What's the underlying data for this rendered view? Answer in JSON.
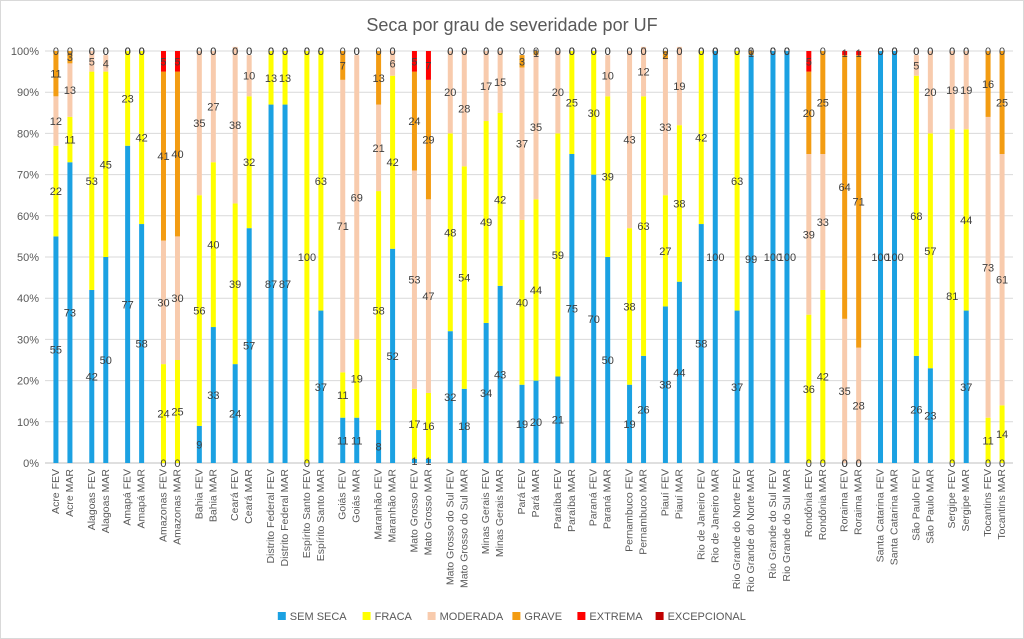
{
  "chart_data": {
    "type": "bar",
    "stacked": true,
    "percent_stacked": true,
    "title": "Seca por grau de severidade por UF",
    "xlabel": "",
    "ylabel": "",
    "ylim": [
      0,
      100
    ],
    "y_ticks": [
      "0%",
      "10%",
      "20%",
      "30%",
      "40%",
      "50%",
      "60%",
      "70%",
      "80%",
      "90%",
      "100%"
    ],
    "grid": true,
    "legend_position": "bottom",
    "categories": [
      "Acre FEV",
      "Acre MAR",
      "Alagoas FEV",
      "Alagoas MAR",
      "Amapá FEV",
      "Amapá MAR",
      "Amazonas FEV",
      "Amazonas MAR",
      "Bahia FEV",
      "Bahia MAR",
      "Ceará FEV",
      "Ceará MAR",
      "Distrito Federal FEV",
      "Distrito Federal MAR",
      "Espírito Santo FEV",
      "Espírito Santo MAR",
      "Goiás FEV",
      "Goiás MAR",
      "Maranhão FEV",
      "Maranhão MAR",
      "Mato Grosso FEV",
      "Mato Grosso MAR",
      "Mato Grosso do Sul FEV",
      "Mato Grosso do Sul MAR",
      "Minas Gerais FEV",
      "Minas Gerais MAR",
      "Pará FEV",
      "Pará MAR",
      "Paraíba FEV",
      "Paraíba MAR",
      "Paraná FEV",
      "Paraná MAR",
      "Pernambuco FEV",
      "Pernambuco MAR",
      "Piauí FEV",
      "Piauí MAR",
      "Rio de Janeiro FEV",
      "Rio de Janeiro MAR",
      "Rio Grande do Norte FEV",
      "Rio Grande do Norte MAR",
      "Rio Grande do Sul FEV",
      "Rio Grande do Sul MAR",
      "Rondônia FEV",
      "Rondônia MAR",
      "Roraima FEV",
      "Roraima MAR",
      "Santa Catarina FEV",
      "Santa Catarina MAR",
      "São Paulo FEV",
      "São Paulo MAR",
      "Sergipe FEV",
      "Sergipe MAR",
      "Tocantins FEV",
      "Tocantins MAR"
    ],
    "series": [
      {
        "name": "SEM SECA",
        "color": "#1ba1e2",
        "values": [
          55,
          73,
          42,
          50,
          77,
          58,
          0,
          0,
          9,
          33,
          24,
          57,
          87,
          87,
          0,
          37,
          11,
          11,
          8,
          52,
          1,
          1,
          32,
          18,
          34,
          43,
          19,
          20,
          21,
          75,
          70,
          50,
          19,
          26,
          38,
          44,
          58,
          100,
          37,
          99,
          100,
          100,
          0,
          0,
          0,
          0,
          100,
          100,
          26,
          23,
          0,
          37,
          0,
          0
        ]
      },
      {
        "name": "FRACA",
        "color": "#ffff00",
        "values": [
          22,
          11,
          53,
          45,
          23,
          42,
          24,
          25,
          56,
          40,
          39,
          32,
          13,
          13,
          100,
          63,
          11,
          19,
          58,
          42,
          17,
          16,
          48,
          54,
          49,
          42,
          40,
          44,
          59,
          25,
          30,
          39,
          38,
          63,
          27,
          38,
          42,
          0,
          63,
          0,
          0,
          0,
          36,
          42,
          0,
          0,
          0,
          0,
          68,
          57,
          81,
          44,
          11,
          14
        ]
      },
      {
        "name": "MODERADA",
        "color": "#f8cbad",
        "values": [
          12,
          13,
          5,
          4,
          0,
          0,
          30,
          30,
          35,
          27,
          38,
          10,
          0,
          0,
          0,
          0,
          71,
          69,
          21,
          6,
          53,
          47,
          20,
          28,
          17,
          15,
          37,
          35,
          20,
          0,
          0,
          10,
          43,
          12,
          33,
          19,
          0,
          0,
          0,
          0,
          0,
          0,
          39,
          33,
          35,
          28,
          0,
          0,
          5,
          20,
          19,
          19,
          73,
          61
        ]
      },
      {
        "name": "GRAVE",
        "color": "#f39c12",
        "values": [
          11,
          3,
          0,
          0,
          0,
          0,
          41,
          40,
          0,
          0,
          0,
          0,
          0,
          0,
          0,
          0,
          7,
          0,
          13,
          0,
          24,
          29,
          0,
          0,
          0,
          0,
          3,
          1,
          0,
          0,
          0,
          0,
          0,
          0,
          2,
          0,
          0,
          0,
          0,
          1,
          0,
          0,
          20,
          25,
          64,
          71,
          0,
          0,
          0,
          0,
          0,
          0,
          16,
          25
        ]
      },
      {
        "name": "EXTREMA",
        "color": "#ff0000",
        "values": [
          0,
          0,
          0,
          0,
          0,
          0,
          5,
          5,
          0,
          0,
          0,
          0,
          0,
          0,
          0,
          0,
          0,
          0,
          0,
          0,
          5,
          7,
          0,
          0,
          0,
          0,
          0,
          0,
          0,
          0,
          0,
          0,
          0,
          0,
          0,
          0,
          0,
          0,
          0,
          0,
          0,
          0,
          5,
          0,
          1,
          1,
          0,
          0,
          0,
          0,
          0,
          0,
          0,
          0
        ]
      },
      {
        "name": "EXCEPCIONAL",
        "color": "#c00000",
        "values": [
          0,
          0,
          0,
          0,
          0,
          0,
          0,
          0,
          0,
          0,
          0,
          0,
          0,
          0,
          0,
          0,
          0,
          0,
          0,
          0,
          0,
          0,
          0,
          0,
          0,
          0,
          0,
          0,
          0,
          0,
          0,
          0,
          0,
          0,
          0,
          0,
          0,
          0,
          0,
          0,
          0,
          0,
          0,
          0,
          0,
          0,
          0,
          0,
          0,
          0,
          0,
          0,
          0,
          0
        ]
      }
    ]
  }
}
